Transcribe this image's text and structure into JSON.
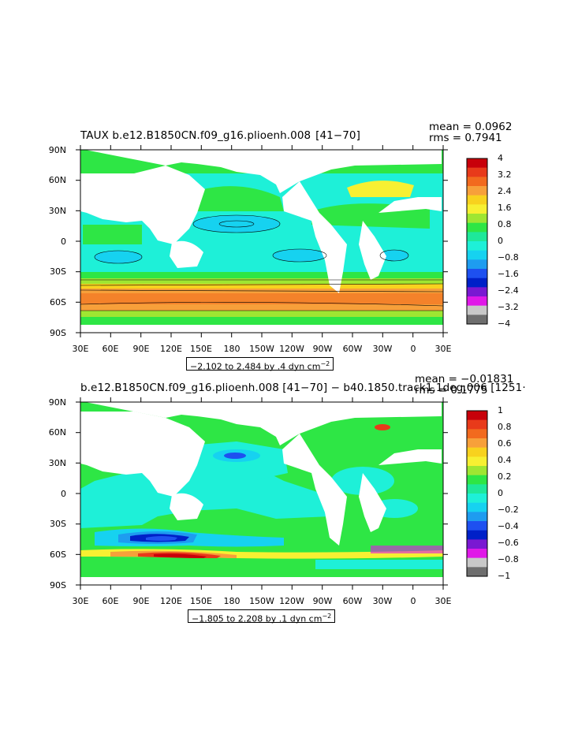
{
  "panels": [
    {
      "title": "TAUX b.e12.B1850CN.f09_g16.plioenh.008  [41−70]",
      "mean_label": "mean = 0.0962",
      "rms_label": "rms = 0.7941",
      "lat_labels": [
        "90N",
        "60N",
        "30N",
        "0",
        "30S",
        "60S",
        "90S"
      ],
      "lon_labels": [
        "30E",
        "60E",
        "90E",
        "120E",
        "150E",
        "180",
        "150W",
        "120W",
        "90W",
        "60W",
        "30W",
        "0",
        "30E"
      ],
      "colorbar_labels": [
        "4",
        "3.2",
        "2.4",
        "1.6",
        "0.8",
        "0",
        "−0.8",
        "−1.6",
        "−2.4",
        "−3.2",
        "−4"
      ],
      "colorbar_colors": [
        "#c8000a",
        "#e83a1a",
        "#f26a1e",
        "#f7a03a",
        "#f8d21e",
        "#f7f032",
        "#9fe632",
        "#2ee645",
        "#1ee89a",
        "#1ef0d8",
        "#16d2f0",
        "#1e9cf0",
        "#1e50f0",
        "#0020c8",
        "#7a18d2",
        "#e018e8",
        "#c8c8c8",
        "#6e6e6e"
      ],
      "range_label": "−2.102 to 2.484 by .4 dyn cm",
      "range_unit_exp": "−2"
    },
    {
      "title": "b.e12.B1850CN.f09_g16.plioenh.008 [41−70] − b40.1850.track1.1deg.006 [1251·",
      "mean_label": "mean = −0.01831",
      "rms_label": "rms = 0.1775",
      "lat_labels": [
        "90N",
        "60N",
        "30N",
        "0",
        "30S",
        "60S",
        "90S"
      ],
      "lon_labels": [
        "30E",
        "60E",
        "90E",
        "120E",
        "150E",
        "180",
        "150W",
        "120W",
        "90W",
        "60W",
        "30W",
        "0",
        "30E"
      ],
      "colorbar_labels": [
        "1",
        "0.8",
        "0.6",
        "0.4",
        "0.2",
        "0",
        "−0.2",
        "−0.4",
        "−0.6",
        "−0.8",
        "−1"
      ],
      "colorbar_colors": [
        "#c8000a",
        "#e83a1a",
        "#f26a1e",
        "#f7a03a",
        "#f8d21e",
        "#f7f032",
        "#9fe632",
        "#2ee645",
        "#1ee89a",
        "#1ef0d8",
        "#16d2f0",
        "#1e9cf0",
        "#1e50f0",
        "#0020c8",
        "#7a18d2",
        "#e018e8",
        "#c8c8c8",
        "#6e6e6e"
      ],
      "range_label": "−1.805 to 2.208 by .1 dyn cm",
      "range_unit_exp": "−2"
    }
  ]
}
